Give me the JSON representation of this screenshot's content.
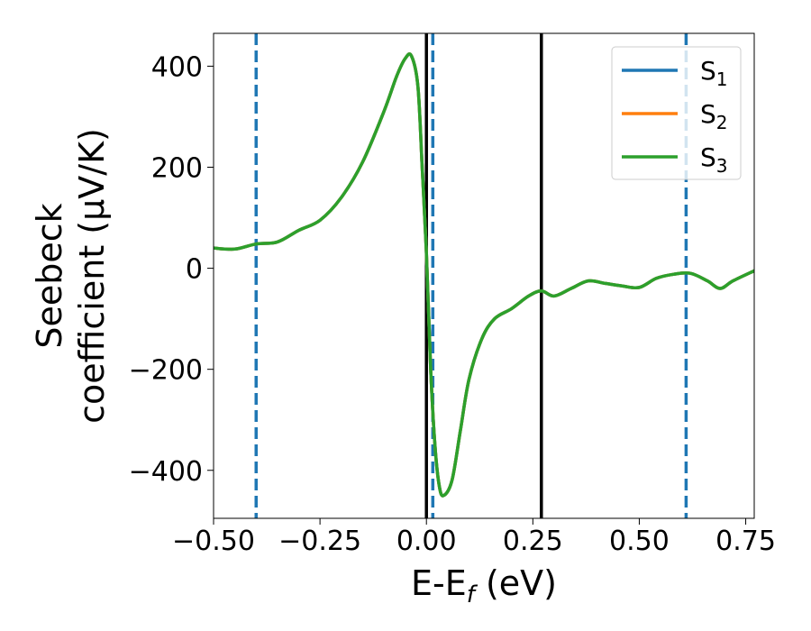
{
  "chart_data": {
    "type": "line",
    "xlabel": {
      "main": "E-E",
      "sub": "f",
      "suffix": " (eV)"
    },
    "ylabel": {
      "line1": "Seebeck",
      "line2": "coefficient  (μV/K)"
    },
    "xlim": [
      -0.5,
      0.77
    ],
    "ylim": [
      -495,
      465
    ],
    "xticks": [
      {
        "value": -0.5,
        "label": "−0.50"
      },
      {
        "value": -0.25,
        "label": "−0.25"
      },
      {
        "value": 0.0,
        "label": "0.00"
      },
      {
        "value": 0.25,
        "label": "0.25"
      },
      {
        "value": 0.5,
        "label": "0.50"
      },
      {
        "value": 0.75,
        "label": "0.75"
      }
    ],
    "yticks": [
      {
        "value": 400,
        "label": "400"
      },
      {
        "value": 200,
        "label": "200"
      },
      {
        "value": 0,
        "label": "0"
      },
      {
        "value": -200,
        "label": "−200"
      },
      {
        "value": -400,
        "label": "−400"
      }
    ],
    "grid": false,
    "legend": {
      "placement": "top-right"
    },
    "series": [
      {
        "name": {
          "main": "S",
          "sub": "1"
        },
        "color": "#1f77b4",
        "x": [
          -0.5,
          -0.45,
          -0.4,
          -0.35,
          -0.3,
          -0.25,
          -0.2,
          -0.15,
          -0.1,
          -0.07,
          -0.05,
          -0.035,
          -0.02,
          -0.01,
          0.0,
          0.01,
          0.02,
          0.03,
          0.04,
          0.06,
          0.08,
          0.1,
          0.13,
          0.16,
          0.2,
          0.24,
          0.27,
          0.3,
          0.34,
          0.38,
          0.42,
          0.46,
          0.5,
          0.54,
          0.58,
          0.62,
          0.66,
          0.69,
          0.72,
          0.77
        ],
        "y": [
          40,
          38,
          48,
          52,
          75,
          95,
          140,
          210,
          310,
          380,
          415,
          420,
          360,
          200,
          30,
          -200,
          -350,
          -430,
          -450,
          -420,
          -320,
          -220,
          -140,
          -100,
          -80,
          -55,
          -45,
          -55,
          -40,
          -25,
          -30,
          -35,
          -38,
          -20,
          -12,
          -10,
          -25,
          -40,
          -25,
          -5
        ]
      },
      {
        "name": {
          "main": "S",
          "sub": "2"
        },
        "color": "#ff7f0e",
        "x": [
          -0.5,
          -0.45,
          -0.4,
          -0.35,
          -0.3,
          -0.25,
          -0.2,
          -0.15,
          -0.1,
          -0.07,
          -0.05,
          -0.035,
          -0.02,
          -0.01,
          0.0,
          0.01,
          0.02,
          0.03,
          0.04,
          0.06,
          0.08,
          0.1,
          0.13,
          0.16,
          0.2,
          0.24,
          0.27,
          0.3,
          0.34,
          0.38,
          0.42,
          0.46,
          0.5,
          0.54,
          0.58,
          0.62,
          0.66,
          0.69,
          0.72,
          0.77
        ],
        "y": [
          40,
          38,
          48,
          52,
          75,
          95,
          140,
          210,
          310,
          380,
          415,
          420,
          360,
          200,
          30,
          -200,
          -350,
          -430,
          -450,
          -420,
          -320,
          -220,
          -140,
          -100,
          -80,
          -55,
          -45,
          -55,
          -40,
          -25,
          -30,
          -35,
          -38,
          -20,
          -12,
          -10,
          -25,
          -40,
          -25,
          -5
        ]
      },
      {
        "name": {
          "main": "S",
          "sub": "3"
        },
        "color": "#2ca02c",
        "x": [
          -0.5,
          -0.45,
          -0.4,
          -0.35,
          -0.3,
          -0.25,
          -0.2,
          -0.15,
          -0.1,
          -0.07,
          -0.05,
          -0.035,
          -0.02,
          -0.01,
          0.0,
          0.01,
          0.02,
          0.03,
          0.04,
          0.06,
          0.08,
          0.1,
          0.13,
          0.16,
          0.2,
          0.24,
          0.27,
          0.3,
          0.34,
          0.38,
          0.42,
          0.46,
          0.5,
          0.54,
          0.58,
          0.62,
          0.66,
          0.69,
          0.72,
          0.77
        ],
        "y": [
          40,
          38,
          48,
          52,
          75,
          95,
          140,
          210,
          310,
          380,
          415,
          420,
          360,
          200,
          30,
          -200,
          -350,
          -430,
          -450,
          -420,
          -320,
          -220,
          -140,
          -100,
          -80,
          -55,
          -45,
          -55,
          -40,
          -25,
          -30,
          -35,
          -38,
          -20,
          -12,
          -10,
          -25,
          -40,
          -25,
          -5
        ]
      }
    ],
    "vlines": [
      {
        "x": -0.4,
        "style": "dashed",
        "color": "#1f77b4"
      },
      {
        "x": 0.015,
        "style": "dashed",
        "color": "#1f77b4"
      },
      {
        "x": 0.61,
        "style": "dashed",
        "color": "#1f77b4"
      },
      {
        "x": 0.0,
        "style": "solid",
        "color": "#000000"
      },
      {
        "x": 0.27,
        "style": "solid",
        "color": "#000000"
      }
    ]
  }
}
